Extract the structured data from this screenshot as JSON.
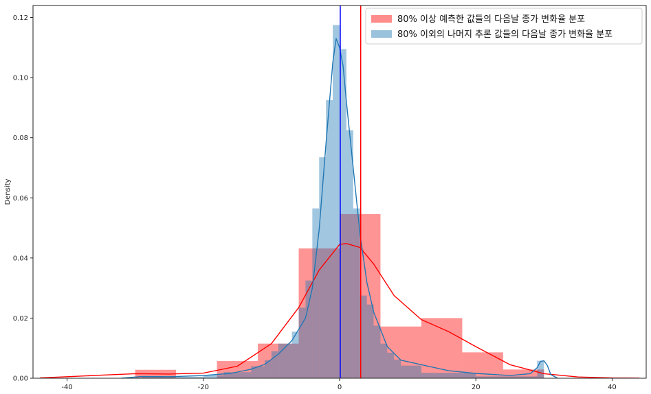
{
  "chart_data": {
    "type": "histogram",
    "title": "",
    "xlabel": "",
    "ylabel": "Density",
    "xlim": [
      -45,
      45
    ],
    "ylim": [
      0,
      0.124
    ],
    "xticks": [
      -40,
      -20,
      0,
      20,
      40
    ],
    "yticks": [
      0.0,
      0.02,
      0.04,
      0.06,
      0.08,
      0.1,
      0.12
    ],
    "xtick_labels": [
      "-40",
      "-20",
      "0",
      "20",
      "40"
    ],
    "ytick_labels": [
      "0.00",
      "0.02",
      "0.04",
      "0.06",
      "0.08",
      "0.10",
      "0.12"
    ],
    "grid": false,
    "legend_position": "top-right",
    "series": [
      {
        "name": "80% 이상 예측한 값들의 다음날 종가 변화율 분포",
        "color": "#ff0000",
        "bar_opacity": 0.42,
        "bins": [
          {
            "x0": -30,
            "x1": -24,
            "density": 0.0028
          },
          {
            "x0": -24,
            "x1": -18,
            "density": 0.0
          },
          {
            "x0": -18,
            "x1": -12,
            "density": 0.0057
          },
          {
            "x0": -12,
            "x1": -6,
            "density": 0.0115
          },
          {
            "x0": -6,
            "x1": 0,
            "density": 0.0432
          },
          {
            "x0": 0,
            "x1": 6,
            "density": 0.0546
          },
          {
            "x0": 6,
            "x1": 12,
            "density": 0.0172
          },
          {
            "x0": 12,
            "x1": 18,
            "density": 0.02
          },
          {
            "x0": 18,
            "x1": 24,
            "density": 0.0086
          },
          {
            "x0": 24,
            "x1": 30,
            "density": 0.0029
          }
        ],
        "kde": {
          "x": [
            -44,
            -40,
            -35,
            -30,
            -25,
            -20,
            -15,
            -10,
            -6,
            -3,
            0,
            1,
            3,
            5,
            8,
            12,
            16,
            20,
            25,
            30,
            35,
            40,
            44
          ],
          "y": [
            0.0001,
            0.0005,
            0.001,
            0.0015,
            0.0014,
            0.0017,
            0.004,
            0.0115,
            0.0235,
            0.036,
            0.0445,
            0.0448,
            0.0435,
            0.038,
            0.0275,
            0.0195,
            0.0155,
            0.0105,
            0.0045,
            0.0015,
            0.0004,
            0.0001,
            5e-05
          ]
        },
        "mean_line_x": 3.1
      },
      {
        "name": "80% 이외의 나머지 추론 값들의 다음날 종가 변화율 분포",
        "color": "#1f77b4",
        "bar_opacity": 0.42,
        "bins": [
          {
            "x0": -30,
            "x1": -29,
            "density": 0.0002
          },
          {
            "x0": -29,
            "x1": -20,
            "density": 0.0005
          },
          {
            "x0": -20,
            "x1": -17,
            "density": 0.001
          },
          {
            "x0": -17,
            "x1": -13,
            "density": 0.002
          },
          {
            "x0": -13,
            "x1": -11,
            "density": 0.004
          },
          {
            "x0": -11,
            "x1": -10,
            "density": 0.006
          },
          {
            "x0": -10,
            "x1": -9,
            "density": 0.009
          },
          {
            "x0": -9,
            "x1": -7,
            "density": 0.0115
          },
          {
            "x0": -7,
            "x1": -6,
            "density": 0.0155
          },
          {
            "x0": -6,
            "x1": -5,
            "density": 0.0235
          },
          {
            "x0": -5,
            "x1": -4,
            "density": 0.0325
          },
          {
            "x0": -4,
            "x1": -3,
            "density": 0.0565
          },
          {
            "x0": -3,
            "x1": -2,
            "density": 0.0735
          },
          {
            "x0": -2,
            "x1": -1,
            "density": 0.0925
          },
          {
            "x0": -1,
            "x1": 0,
            "density": 0.1175
          },
          {
            "x0": 0,
            "x1": 1,
            "density": 0.1095
          },
          {
            "x0": 1,
            "x1": 2,
            "density": 0.0825
          },
          {
            "x0": 2,
            "x1": 3,
            "density": 0.0565
          },
          {
            "x0": 3,
            "x1": 4,
            "density": 0.0275
          },
          {
            "x0": 4,
            "x1": 5,
            "density": 0.0245
          },
          {
            "x0": 5,
            "x1": 6,
            "density": 0.0175
          },
          {
            "x0": 6,
            "x1": 7,
            "density": 0.0115
          },
          {
            "x0": 7,
            "x1": 8,
            "density": 0.0085
          },
          {
            "x0": 8,
            "x1": 9,
            "density": 0.0062
          },
          {
            "x0": 9,
            "x1": 12,
            "density": 0.0042
          },
          {
            "x0": 12,
            "x1": 20,
            "density": 0.0018
          },
          {
            "x0": 20,
            "x1": 29,
            "density": 0.0006
          },
          {
            "x0": 29,
            "x1": 30,
            "density": 0.0058
          }
        ],
        "kde": {
          "x": [
            -32,
            -29,
            -25,
            -20,
            -16,
            -13,
            -11,
            -9,
            -7,
            -5,
            -4,
            -3,
            -2,
            -1,
            -0.5,
            0,
            0.5,
            1,
            2,
            3,
            4,
            5,
            7,
            9,
            12,
            16,
            20,
            25,
            28,
            29,
            29.5,
            30,
            30.5,
            31,
            32
          ],
          "y": [
            0.0,
            0.0006,
            0.0005,
            0.0009,
            0.0016,
            0.003,
            0.0046,
            0.008,
            0.0125,
            0.02,
            0.03,
            0.0495,
            0.078,
            0.105,
            0.113,
            0.11,
            0.104,
            0.092,
            0.07,
            0.048,
            0.032,
            0.022,
            0.0105,
            0.006,
            0.0045,
            0.0025,
            0.0016,
            0.0009,
            0.0015,
            0.0035,
            0.0056,
            0.0058,
            0.0042,
            0.0012,
            0.0
          ]
        },
        "mean_line_x": 0.1
      }
    ]
  }
}
